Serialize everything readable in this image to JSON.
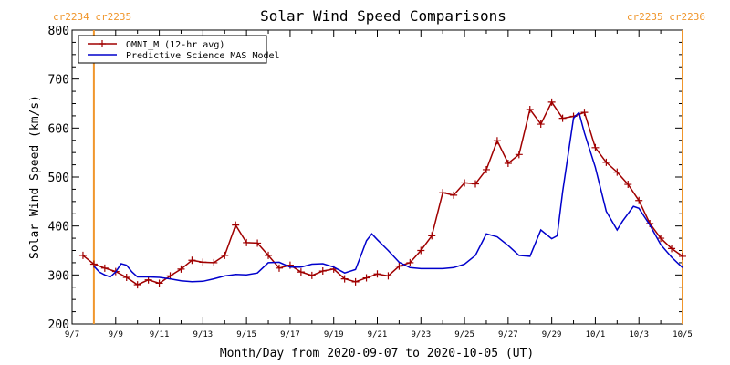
{
  "chart_data": {
    "type": "line",
    "title": "Solar Wind Speed Comparisons",
    "xlabel": "Month/Day from 2020-09-07 to 2020-10-05 (UT)",
    "ylabel": "Solar Wind Speed (km/s)",
    "xlim": [
      "2020-09-07",
      "2020-10-05"
    ],
    "ylim": [
      200,
      800
    ],
    "x_ticks": [
      "9/7",
      "9/9",
      "9/11",
      "9/13",
      "9/15",
      "9/17",
      "9/19",
      "9/21",
      "9/23",
      "9/25",
      "9/27",
      "9/29",
      "10/1",
      "10/3",
      "10/5"
    ],
    "y_ticks": [
      200,
      300,
      400,
      500,
      600,
      700,
      800
    ],
    "grid": false,
    "legend_position": "top-left",
    "carrington_markers": [
      {
        "date": "2020-09-08T00:00",
        "labels": [
          "cr2234",
          "cr2235"
        ],
        "color": "#f0962c"
      },
      {
        "date": "2020-10-05T00:00",
        "labels": [
          "cr2235",
          "cr2236"
        ],
        "color": "#f0962c"
      }
    ],
    "series": [
      {
        "name": "OMNI_M (12-hr avg)",
        "color": "#a00000",
        "marker": "plus",
        "points": [
          [
            "2020-09-07T12:00",
            340
          ],
          [
            "2020-09-08T00:00",
            322
          ],
          [
            "2020-09-08T12:00",
            314
          ],
          [
            "2020-09-09T00:00",
            307
          ],
          [
            "2020-09-09T12:00",
            295
          ],
          [
            "2020-09-10T00:00",
            280
          ],
          [
            "2020-09-10T12:00",
            290
          ],
          [
            "2020-09-11T00:00",
            283
          ],
          [
            "2020-09-11T12:00",
            298
          ],
          [
            "2020-09-12T00:00",
            312
          ],
          [
            "2020-09-12T12:00",
            330
          ],
          [
            "2020-09-13T00:00",
            326
          ],
          [
            "2020-09-13T12:00",
            325
          ],
          [
            "2020-09-14T00:00",
            340
          ],
          [
            "2020-09-14T12:00",
            402
          ],
          [
            "2020-09-15T00:00",
            366
          ],
          [
            "2020-09-15T12:00",
            365
          ],
          [
            "2020-09-16T00:00",
            340
          ],
          [
            "2020-09-16T12:00",
            314
          ],
          [
            "2020-09-17T00:00",
            320
          ],
          [
            "2020-09-17T12:00",
            306
          ],
          [
            "2020-09-18T00:00",
            299
          ],
          [
            "2020-09-18T12:00",
            308
          ],
          [
            "2020-09-19T00:00",
            312
          ],
          [
            "2020-09-19T12:00",
            292
          ],
          [
            "2020-09-20T00:00",
            286
          ],
          [
            "2020-09-20T12:00",
            294
          ],
          [
            "2020-09-21T00:00",
            302
          ],
          [
            "2020-09-21T12:00",
            298
          ],
          [
            "2020-09-22T00:00",
            318
          ],
          [
            "2020-09-22T12:00",
            325
          ],
          [
            "2020-09-23T00:00",
            350
          ],
          [
            "2020-09-23T12:00",
            380
          ],
          [
            "2020-09-24T00:00",
            468
          ],
          [
            "2020-09-24T12:00",
            463
          ],
          [
            "2020-09-25T00:00",
            488
          ],
          [
            "2020-09-25T12:00",
            486
          ],
          [
            "2020-09-26T00:00",
            515
          ],
          [
            "2020-09-26T12:00",
            574
          ],
          [
            "2020-09-27T00:00",
            528
          ],
          [
            "2020-09-27T12:00",
            546
          ],
          [
            "2020-09-28T00:00",
            638
          ],
          [
            "2020-09-28T12:00",
            608
          ],
          [
            "2020-09-29T00:00",
            653
          ],
          [
            "2020-09-29T12:00",
            620
          ],
          [
            "2020-09-30T00:00",
            624
          ],
          [
            "2020-09-30T12:00",
            632
          ],
          [
            "2020-10-01T00:00",
            560
          ],
          [
            "2020-10-01T12:00",
            530
          ],
          [
            "2020-10-02T00:00",
            510
          ],
          [
            "2020-10-02T12:00",
            485
          ],
          [
            "2020-10-03T00:00",
            452
          ],
          [
            "2020-10-03T12:00",
            405
          ],
          [
            "2020-10-04T00:00",
            375
          ],
          [
            "2020-10-04T12:00",
            354
          ],
          [
            "2020-10-05T00:00",
            338
          ]
        ]
      },
      {
        "name": "Predictive Science MAS Model",
        "color": "#0000cc",
        "marker": "none",
        "points": [
          [
            "2020-09-08T00:00",
            318
          ],
          [
            "2020-09-08T06:00",
            306
          ],
          [
            "2020-09-08T12:00",
            300
          ],
          [
            "2020-09-08T18:00",
            296
          ],
          [
            "2020-09-09T00:00",
            306
          ],
          [
            "2020-09-09T06:00",
            323
          ],
          [
            "2020-09-09T12:00",
            320
          ],
          [
            "2020-09-09T18:00",
            306
          ],
          [
            "2020-09-10T00:00",
            296
          ],
          [
            "2020-09-10T12:00",
            296
          ],
          [
            "2020-09-11T00:00",
            295
          ],
          [
            "2020-09-11T12:00",
            292
          ],
          [
            "2020-09-12T00:00",
            288
          ],
          [
            "2020-09-12T12:00",
            286
          ],
          [
            "2020-09-13T00:00",
            287
          ],
          [
            "2020-09-13T12:00",
            292
          ],
          [
            "2020-09-14T00:00",
            298
          ],
          [
            "2020-09-14T12:00",
            301
          ],
          [
            "2020-09-15T00:00",
            300
          ],
          [
            "2020-09-15T12:00",
            304
          ],
          [
            "2020-09-16T00:00",
            325
          ],
          [
            "2020-09-16T12:00",
            326
          ],
          [
            "2020-09-17T00:00",
            316
          ],
          [
            "2020-09-17T12:00",
            316
          ],
          [
            "2020-09-18T00:00",
            322
          ],
          [
            "2020-09-18T12:00",
            323
          ],
          [
            "2020-09-19T00:00",
            316
          ],
          [
            "2020-09-19T12:00",
            304
          ],
          [
            "2020-09-20T00:00",
            311
          ],
          [
            "2020-09-20T06:00",
            340
          ],
          [
            "2020-09-20T12:00",
            370
          ],
          [
            "2020-09-20T18:00",
            384
          ],
          [
            "2020-09-21T00:00",
            372
          ],
          [
            "2020-09-21T12:00",
            350
          ],
          [
            "2020-09-22T00:00",
            326
          ],
          [
            "2020-09-22T12:00",
            315
          ],
          [
            "2020-09-23T00:00",
            313
          ],
          [
            "2020-09-23T12:00",
            313
          ],
          [
            "2020-09-24T00:00",
            313
          ],
          [
            "2020-09-24T12:00",
            315
          ],
          [
            "2020-09-25T00:00",
            322
          ],
          [
            "2020-09-25T12:00",
            340
          ],
          [
            "2020-09-26T00:00",
            384
          ],
          [
            "2020-09-26T12:00",
            378
          ],
          [
            "2020-09-27T00:00",
            360
          ],
          [
            "2020-09-27T12:00",
            340
          ],
          [
            "2020-09-28T00:00",
            338
          ],
          [
            "2020-09-28T12:00",
            392
          ],
          [
            "2020-09-29T00:00",
            374
          ],
          [
            "2020-09-29T06:00",
            380
          ],
          [
            "2020-09-29T12:00",
            470
          ],
          [
            "2020-09-30T00:00",
            620
          ],
          [
            "2020-09-30T06:00",
            632
          ],
          [
            "2020-09-30T12:00",
            590
          ],
          [
            "2020-10-01T00:00",
            520
          ],
          [
            "2020-10-01T12:00",
            430
          ],
          [
            "2020-10-02T00:00",
            392
          ],
          [
            "2020-10-02T06:00",
            410
          ],
          [
            "2020-10-02T18:00",
            440
          ],
          [
            "2020-10-03T00:00",
            436
          ],
          [
            "2020-10-03T12:00",
            402
          ],
          [
            "2020-10-04T00:00",
            362
          ],
          [
            "2020-10-04T12:00",
            336
          ],
          [
            "2020-10-05T00:00",
            315
          ]
        ]
      }
    ]
  }
}
